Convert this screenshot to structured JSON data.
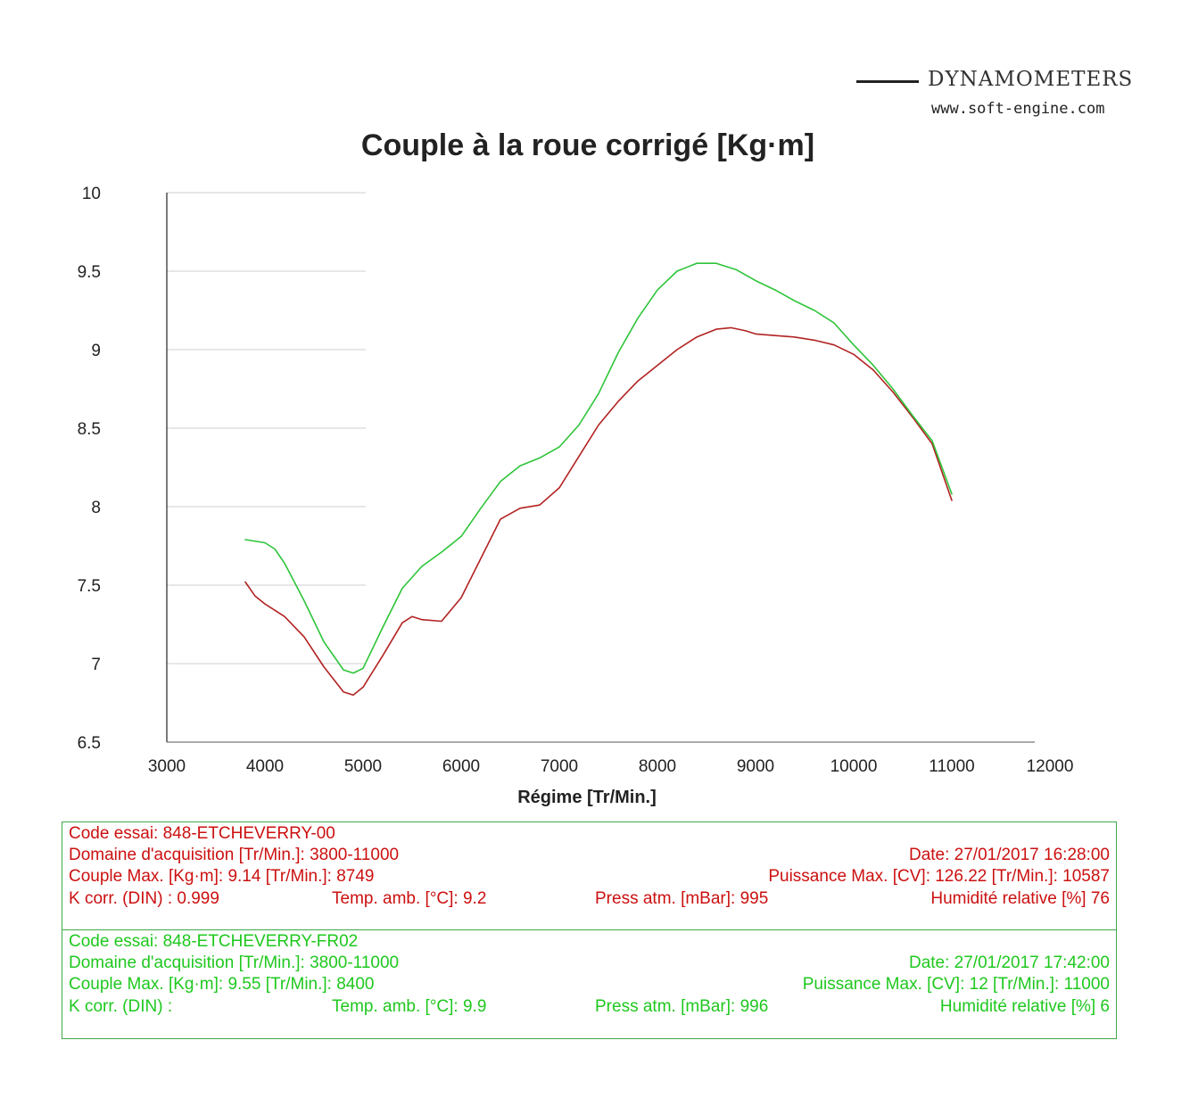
{
  "logo": {
    "name": "DYNAMOMETERS",
    "url": "www.soft-engine.com"
  },
  "colors": {
    "series_red": "#b22222",
    "series_green": "#2ec43a",
    "info_red": "#cc1010",
    "info_green": "#1ec81e",
    "axis": "#222222"
  },
  "chart_data": {
    "type": "line",
    "title": "Couple à la roue corrigé [Kg·m]",
    "xlabel": "Régime [Tr/Min.]",
    "ylabel": "",
    "xlim": [
      3000,
      12000
    ],
    "ylim": [
      6.5,
      10
    ],
    "x_ticks": [
      "3000",
      "4000",
      "5000",
      "6000",
      "7000",
      "8000",
      "9000",
      "10000",
      "11000",
      "12000"
    ],
    "y_ticks": [
      "10",
      "9.5",
      "9",
      "8.5",
      "8",
      "7.5",
      "7",
      "6.5"
    ],
    "grid": true,
    "series": [
      {
        "name": "848-ETCHEVERRY-00",
        "color": "red",
        "points": [
          [
            3800,
            7.52
          ],
          [
            3900,
            7.43
          ],
          [
            4000,
            7.38
          ],
          [
            4200,
            7.3
          ],
          [
            4400,
            7.17
          ],
          [
            4600,
            6.98
          ],
          [
            4800,
            6.82
          ],
          [
            4900,
            6.8
          ],
          [
            5000,
            6.85
          ],
          [
            5200,
            7.05
          ],
          [
            5400,
            7.26
          ],
          [
            5500,
            7.3
          ],
          [
            5600,
            7.28
          ],
          [
            5800,
            7.27
          ],
          [
            6000,
            7.42
          ],
          [
            6200,
            7.67
          ],
          [
            6400,
            7.92
          ],
          [
            6600,
            7.99
          ],
          [
            6800,
            8.01
          ],
          [
            7000,
            8.12
          ],
          [
            7200,
            8.32
          ],
          [
            7400,
            8.52
          ],
          [
            7600,
            8.67
          ],
          [
            7800,
            8.8
          ],
          [
            8000,
            8.9
          ],
          [
            8200,
            9.0
          ],
          [
            8400,
            9.08
          ],
          [
            8600,
            9.13
          ],
          [
            8749,
            9.14
          ],
          [
            8900,
            9.12
          ],
          [
            9000,
            9.1
          ],
          [
            9200,
            9.09
          ],
          [
            9400,
            9.08
          ],
          [
            9600,
            9.06
          ],
          [
            9800,
            9.03
          ],
          [
            10000,
            8.97
          ],
          [
            10200,
            8.87
          ],
          [
            10400,
            8.73
          ],
          [
            10600,
            8.57
          ],
          [
            10800,
            8.4
          ],
          [
            11000,
            8.04
          ]
        ]
      },
      {
        "name": "848-ETCHEVERRY-FR02",
        "color": "green",
        "points": [
          [
            3800,
            7.79
          ],
          [
            4000,
            7.77
          ],
          [
            4100,
            7.73
          ],
          [
            4200,
            7.64
          ],
          [
            4400,
            7.4
          ],
          [
            4600,
            7.14
          ],
          [
            4800,
            6.96
          ],
          [
            4900,
            6.94
          ],
          [
            5000,
            6.97
          ],
          [
            5200,
            7.23
          ],
          [
            5400,
            7.48
          ],
          [
            5600,
            7.62
          ],
          [
            5800,
            7.71
          ],
          [
            6000,
            7.81
          ],
          [
            6200,
            7.99
          ],
          [
            6400,
            8.16
          ],
          [
            6600,
            8.26
          ],
          [
            6800,
            8.31
          ],
          [
            7000,
            8.38
          ],
          [
            7200,
            8.52
          ],
          [
            7400,
            8.72
          ],
          [
            7600,
            8.98
          ],
          [
            7800,
            9.2
          ],
          [
            8000,
            9.38
          ],
          [
            8200,
            9.5
          ],
          [
            8400,
            9.55
          ],
          [
            8600,
            9.55
          ],
          [
            8800,
            9.51
          ],
          [
            9000,
            9.44
          ],
          [
            9200,
            9.38
          ],
          [
            9400,
            9.31
          ],
          [
            9600,
            9.25
          ],
          [
            9800,
            9.17
          ],
          [
            10000,
            9.03
          ],
          [
            10200,
            8.9
          ],
          [
            10400,
            8.75
          ],
          [
            10600,
            8.58
          ],
          [
            10800,
            8.42
          ],
          [
            11000,
            8.08
          ]
        ]
      }
    ]
  },
  "runs": [
    {
      "code": "Code essai: 848-ETCHEVERRY-00",
      "domain": "Domaine d'acquisition [Tr/Min.]: 3800-11000",
      "date": "Date: 27/01/2017   16:28:00",
      "couple": "Couple Max. [Kg·m]: 9.14   [Tr/Min.]: 8749",
      "puissance": "Puissance Max. [CV]: 126.22   [Tr/Min.]: 10587",
      "kcorr": "K corr. (DIN) : 0.999",
      "temp": "Temp. amb. [°C]: 9.2",
      "press": "Press atm. [mBar]: 995",
      "humid": "Humidité relative [%]  76"
    },
    {
      "code": "Code essai: 848-ETCHEVERRY-FR02",
      "domain": "Domaine d'acquisition [Tr/Min.]: 3800-11000",
      "date": "Date: 27/01/2017   17:42:00",
      "couple": "Couple Max. [Kg·m]: 9.55   [Tr/Min.]: 8400",
      "puissance": "Puissance Max. [CV]: 12   [Tr/Min.]: 11000",
      "kcorr": "K corr. (DIN) :",
      "temp": "Temp. amb. [°C]: 9.9",
      "press": "Press atm. [mBar]: 996",
      "humid": "Humidité relative [%]  6"
    }
  ]
}
